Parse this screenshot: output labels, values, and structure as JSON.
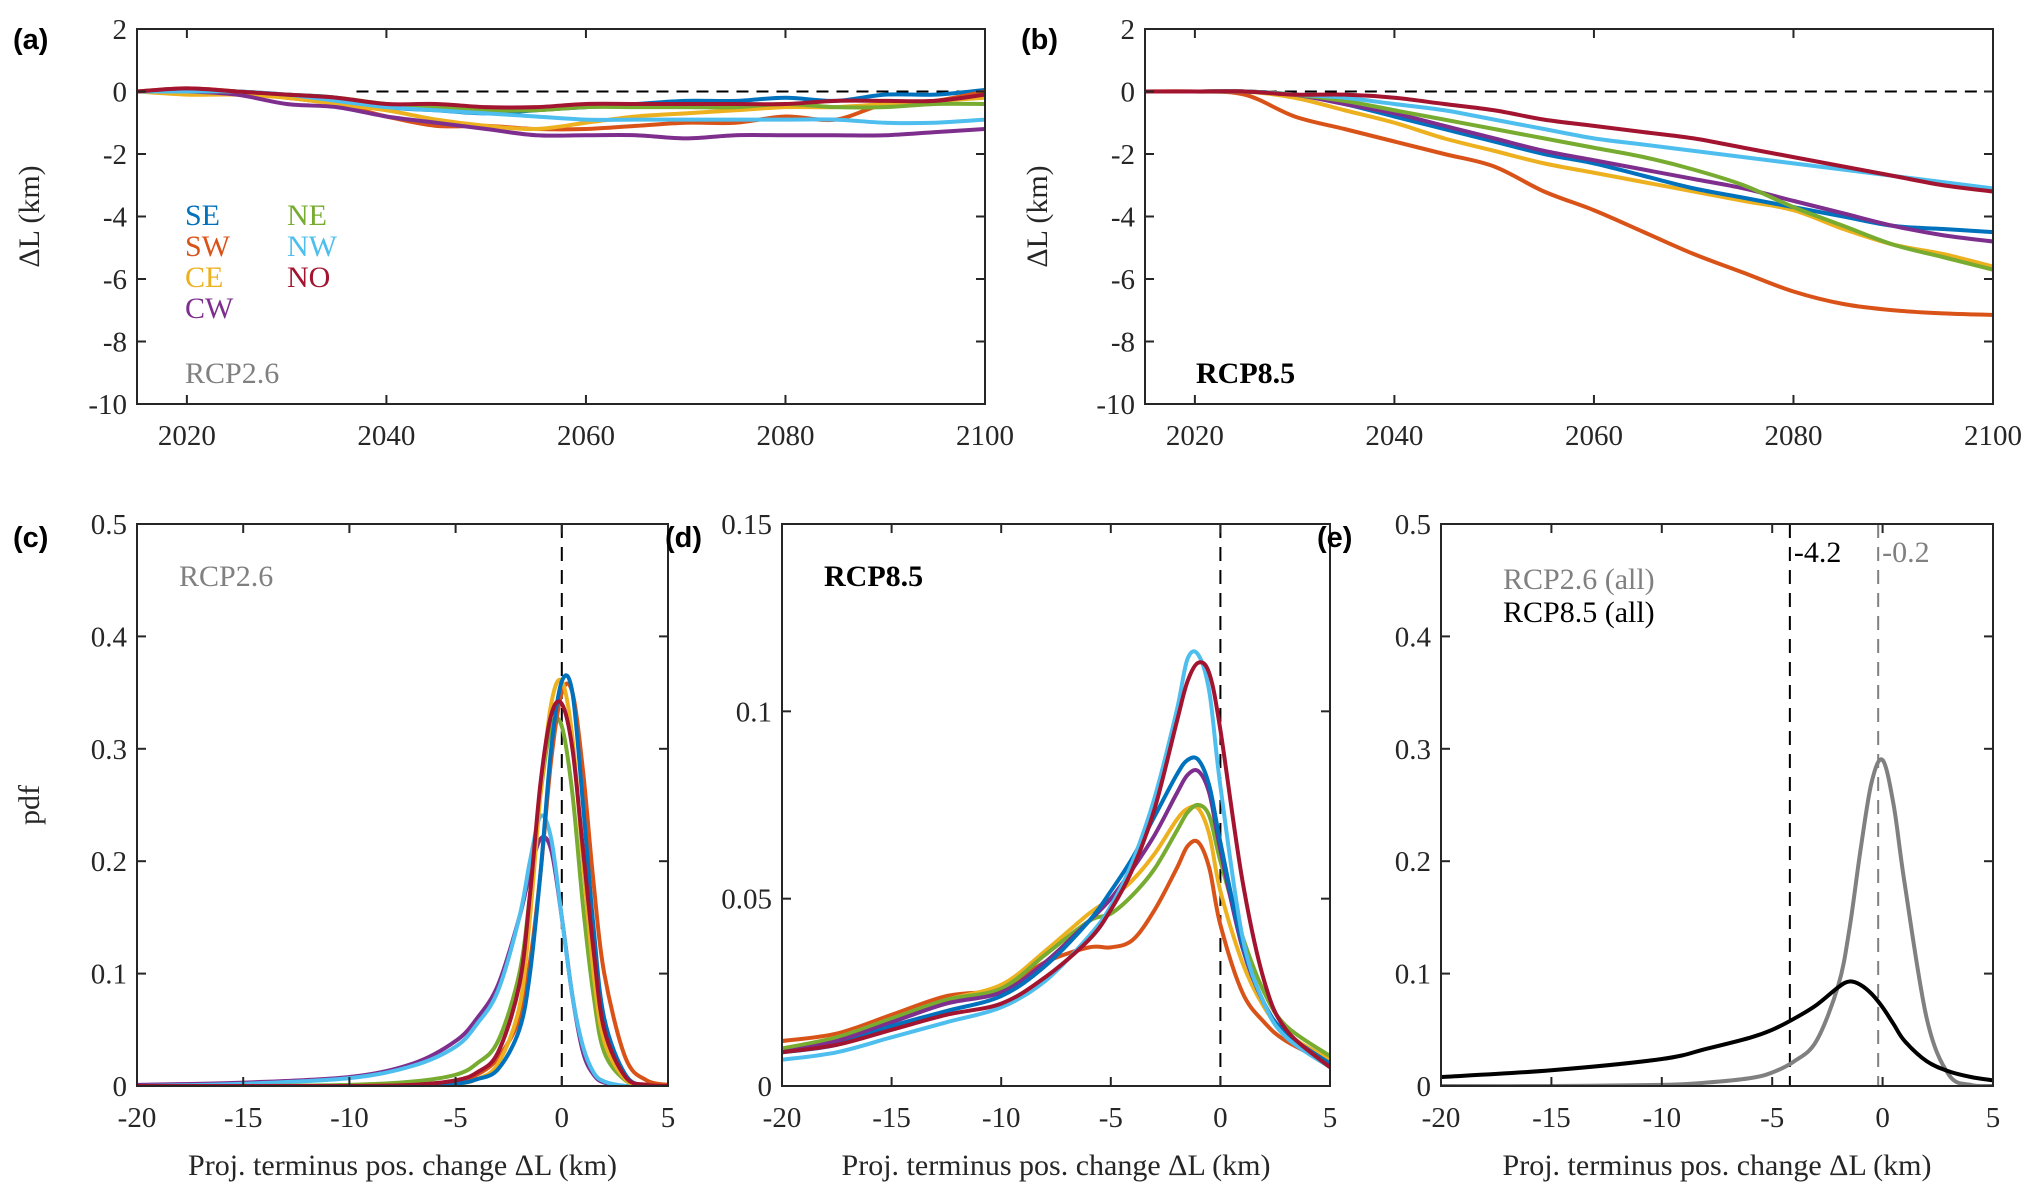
{
  "colors": {
    "SE": "#0072BD",
    "SW": "#D95319",
    "CE": "#EDB120",
    "CW": "#7E2F8E",
    "NE": "#77AC30",
    "NW": "#4DBEEE",
    "NO": "#A2142F",
    "rcp26": "#808080",
    "rcp85": "#000000"
  },
  "chart_data": [
    {
      "id": "a",
      "panel_label": "(a)",
      "type": "line",
      "xlim": [
        2015,
        2100
      ],
      "ylim": [
        -10,
        2
      ],
      "xticks": [
        2020,
        2040,
        2060,
        2080,
        2100
      ],
      "yticks": [
        -10,
        -8,
        -6,
        -4,
        -2,
        0,
        2
      ],
      "ylabel": "ΔL (km)",
      "xlabel": "",
      "annotation": {
        "text": "RCP2.6",
        "color": "#808080",
        "bold": false
      },
      "hline": 0,
      "legend": [
        "SE",
        "NE",
        "SW",
        "NW",
        "CE",
        "NO",
        "CW"
      ],
      "x": [
        2015,
        2020,
        2025,
        2030,
        2035,
        2040,
        2045,
        2050,
        2055,
        2060,
        2065,
        2070,
        2075,
        2080,
        2085,
        2090,
        2095,
        2100
      ],
      "series": [
        {
          "name": "SE",
          "values": [
            0,
            0,
            0,
            -0.1,
            -0.2,
            -0.5,
            -0.6,
            -0.7,
            -0.6,
            -0.5,
            -0.4,
            -0.3,
            -0.3,
            -0.2,
            -0.3,
            -0.1,
            -0.1,
            0.05
          ]
        },
        {
          "name": "SW",
          "values": [
            0,
            0.1,
            0,
            -0.2,
            -0.4,
            -0.8,
            -1.1,
            -1.1,
            -1.2,
            -1.2,
            -1.1,
            -1.0,
            -1.0,
            -0.8,
            -0.9,
            -0.4,
            -0.3,
            0
          ]
        },
        {
          "name": "CE",
          "values": [
            0,
            -0.1,
            -0.1,
            -0.2,
            -0.4,
            -0.6,
            -0.9,
            -1.1,
            -1.2,
            -1.0,
            -0.8,
            -0.7,
            -0.6,
            -0.5,
            -0.5,
            -0.4,
            -0.3,
            -0.2
          ]
        },
        {
          "name": "CW",
          "values": [
            0,
            0,
            -0.1,
            -0.4,
            -0.5,
            -0.8,
            -1.0,
            -1.2,
            -1.4,
            -1.4,
            -1.4,
            -1.5,
            -1.4,
            -1.4,
            -1.4,
            -1.4,
            -1.3,
            -1.2
          ]
        },
        {
          "name": "NE",
          "values": [
            0,
            0,
            0,
            -0.1,
            -0.2,
            -0.4,
            -0.5,
            -0.6,
            -0.6,
            -0.5,
            -0.5,
            -0.5,
            -0.5,
            -0.4,
            -0.5,
            -0.5,
            -0.4,
            -0.4
          ]
        },
        {
          "name": "NW",
          "values": [
            0,
            0,
            0,
            -0.1,
            -0.3,
            -0.5,
            -0.6,
            -0.7,
            -0.8,
            -0.9,
            -0.9,
            -0.9,
            -0.9,
            -0.9,
            -0.9,
            -1.0,
            -1.0,
            -0.9
          ]
        },
        {
          "name": "NO",
          "values": [
            0,
            0.1,
            0,
            -0.1,
            -0.2,
            -0.4,
            -0.4,
            -0.5,
            -0.5,
            -0.4,
            -0.4,
            -0.4,
            -0.4,
            -0.4,
            -0.3,
            -0.3,
            -0.3,
            -0.1
          ]
        }
      ]
    },
    {
      "id": "b",
      "panel_label": "(b)",
      "type": "line",
      "xlim": [
        2015,
        2100
      ],
      "ylim": [
        -10,
        2
      ],
      "xticks": [
        2020,
        2040,
        2060,
        2080,
        2100
      ],
      "yticks": [
        -10,
        -8,
        -6,
        -4,
        -2,
        0,
        2
      ],
      "ylabel": "ΔL (km)",
      "xlabel": "",
      "annotation": {
        "text": "RCP8.5",
        "color": "#000000",
        "bold": true
      },
      "hline": 0,
      "x": [
        2015,
        2020,
        2025,
        2030,
        2035,
        2040,
        2045,
        2050,
        2055,
        2060,
        2065,
        2070,
        2075,
        2080,
        2085,
        2090,
        2095,
        2100
      ],
      "series": [
        {
          "name": "SW",
          "values": [
            0,
            0,
            -0.1,
            -0.8,
            -1.2,
            -1.6,
            -2.0,
            -2.4,
            -3.2,
            -3.8,
            -4.5,
            -5.2,
            -5.8,
            -6.4,
            -6.8,
            -7.0,
            -7.1,
            -7.15
          ]
        },
        {
          "name": "CE",
          "values": [
            0,
            0,
            0,
            -0.2,
            -0.6,
            -1.0,
            -1.5,
            -1.9,
            -2.3,
            -2.6,
            -2.9,
            -3.2,
            -3.5,
            -3.8,
            -4.4,
            -4.9,
            -5.2,
            -5.6
          ]
        },
        {
          "name": "SE",
          "values": [
            0,
            0,
            0,
            -0.1,
            -0.4,
            -0.8,
            -1.2,
            -1.6,
            -2.0,
            -2.3,
            -2.7,
            -3.1,
            -3.4,
            -3.7,
            -4.0,
            -4.3,
            -4.4,
            -4.5
          ]
        },
        {
          "name": "CW",
          "values": [
            0,
            0,
            0,
            -0.1,
            -0.4,
            -0.7,
            -1.1,
            -1.5,
            -1.9,
            -2.2,
            -2.5,
            -2.8,
            -3.1,
            -3.5,
            -3.9,
            -4.3,
            -4.6,
            -4.8
          ]
        },
        {
          "name": "NE",
          "values": [
            0,
            0,
            0,
            -0.1,
            -0.3,
            -0.6,
            -0.9,
            -1.2,
            -1.5,
            -1.8,
            -2.1,
            -2.5,
            -3.0,
            -3.7,
            -4.3,
            -4.9,
            -5.3,
            -5.7
          ]
        },
        {
          "name": "NW",
          "values": [
            0,
            0,
            0,
            -0.1,
            -0.2,
            -0.4,
            -0.6,
            -0.9,
            -1.2,
            -1.5,
            -1.7,
            -1.9,
            -2.1,
            -2.3,
            -2.5,
            -2.7,
            -2.9,
            -3.1
          ]
        },
        {
          "name": "NO",
          "values": [
            0,
            0,
            0,
            -0.1,
            -0.1,
            -0.2,
            -0.4,
            -0.6,
            -0.9,
            -1.1,
            -1.3,
            -1.5,
            -1.8,
            -2.1,
            -2.4,
            -2.7,
            -3.0,
            -3.2
          ]
        }
      ]
    },
    {
      "id": "c",
      "panel_label": "(c)",
      "type": "line",
      "xlim": [
        -20,
        5
      ],
      "ylim": [
        0,
        0.5
      ],
      "xticks": [
        -20,
        -15,
        -10,
        -5,
        0,
        5
      ],
      "yticks": [
        0,
        0.1,
        0.2,
        0.3,
        0.4,
        0.5
      ],
      "ylabel": "pdf",
      "xlabel": "Proj. terminus pos. change ΔL (km)",
      "annotation": {
        "text": "RCP2.6",
        "color": "#808080",
        "bold": false
      },
      "vlines": [
        {
          "x": 0,
          "color": "#000000"
        }
      ],
      "x": [
        -20,
        -15,
        -10,
        -7,
        -5,
        -4,
        -3,
        -2,
        -1.5,
        -1,
        -0.5,
        0,
        0.5,
        1,
        1.5,
        2,
        3,
        4,
        5
      ],
      "series": [
        {
          "name": "CW",
          "values": [
            0.001,
            0.003,
            0.008,
            0.02,
            0.04,
            0.06,
            0.09,
            0.15,
            0.19,
            0.22,
            0.21,
            0.15,
            0.08,
            0.03,
            0.01,
            0.003,
            0,
            0,
            0
          ]
        },
        {
          "name": "NW",
          "values": [
            0,
            0.002,
            0.007,
            0.018,
            0.035,
            0.055,
            0.085,
            0.15,
            0.2,
            0.24,
            0.22,
            0.15,
            0.08,
            0.035,
            0.012,
            0.004,
            0,
            0,
            0
          ]
        },
        {
          "name": "NE",
          "values": [
            0,
            0,
            0.001,
            0.004,
            0.01,
            0.02,
            0.04,
            0.1,
            0.17,
            0.26,
            0.32,
            0.32,
            0.26,
            0.16,
            0.08,
            0.03,
            0.005,
            0.001,
            0
          ]
        },
        {
          "name": "SW",
          "values": [
            0,
            0,
            0,
            0.001,
            0.004,
            0.01,
            0.025,
            0.06,
            0.11,
            0.19,
            0.29,
            0.35,
            0.35,
            0.28,
            0.18,
            0.1,
            0.025,
            0.005,
            0.001
          ]
        },
        {
          "name": "CE",
          "values": [
            0,
            0,
            0,
            0,
            0.002,
            0.006,
            0.02,
            0.07,
            0.15,
            0.26,
            0.34,
            0.36,
            0.31,
            0.2,
            0.1,
            0.04,
            0.006,
            0,
            0
          ]
        },
        {
          "name": "SE",
          "values": [
            0,
            0,
            0,
            0,
            0.002,
            0.006,
            0.015,
            0.05,
            0.1,
            0.19,
            0.3,
            0.36,
            0.35,
            0.25,
            0.14,
            0.06,
            0.01,
            0,
            0
          ]
        },
        {
          "name": "NO",
          "values": [
            0,
            0,
            0,
            0.001,
            0.005,
            0.012,
            0.03,
            0.09,
            0.17,
            0.27,
            0.33,
            0.34,
            0.3,
            0.21,
            0.12,
            0.05,
            0.008,
            0.001,
            0
          ]
        }
      ]
    },
    {
      "id": "d",
      "panel_label": "(d)",
      "type": "line",
      "xlim": [
        -20,
        5
      ],
      "ylim": [
        0,
        0.15
      ],
      "xticks": [
        -20,
        -15,
        -10,
        -5,
        0,
        5
      ],
      "yticks": [
        0,
        0.05,
        0.1,
        0.15
      ],
      "ylabel": "",
      "xlabel": "Proj. terminus pos. change ΔL (km)",
      "annotation": {
        "text": "RCP8.5",
        "color": "#000000",
        "bold": true
      },
      "vlines": [
        {
          "x": 0,
          "color": "#000000"
        }
      ],
      "x": [
        -20,
        -17.5,
        -15,
        -12.5,
        -10,
        -8,
        -6,
        -5,
        -4,
        -3,
        -2,
        -1.5,
        -1,
        -0.5,
        0,
        1,
        2,
        3,
        5
      ],
      "series": [
        {
          "name": "SW",
          "values": [
            0.012,
            0.014,
            0.019,
            0.024,
            0.026,
            0.033,
            0.037,
            0.037,
            0.039,
            0.047,
            0.058,
            0.064,
            0.065,
            0.058,
            0.043,
            0.025,
            0.017,
            0.012,
            0.006
          ]
        },
        {
          "name": "CE",
          "values": [
            0.01,
            0.013,
            0.018,
            0.023,
            0.027,
            0.036,
            0.046,
            0.05,
            0.055,
            0.062,
            0.071,
            0.074,
            0.074,
            0.067,
            0.052,
            0.033,
            0.021,
            0.014,
            0.007
          ]
        },
        {
          "name": "NE",
          "values": [
            0.01,
            0.013,
            0.018,
            0.023,
            0.026,
            0.035,
            0.044,
            0.046,
            0.051,
            0.058,
            0.068,
            0.073,
            0.075,
            0.072,
            0.06,
            0.04,
            0.025,
            0.016,
            0.008
          ]
        },
        {
          "name": "CW",
          "values": [
            0.009,
            0.012,
            0.017,
            0.022,
            0.025,
            0.033,
            0.044,
            0.05,
            0.058,
            0.067,
            0.078,
            0.083,
            0.084,
            0.078,
            0.063,
            0.037,
            0.022,
            0.014,
            0.006
          ]
        },
        {
          "name": "SE",
          "values": [
            0.009,
            0.011,
            0.016,
            0.02,
            0.024,
            0.032,
            0.044,
            0.052,
            0.061,
            0.072,
            0.083,
            0.087,
            0.087,
            0.08,
            0.065,
            0.038,
            0.022,
            0.014,
            0.006
          ]
        },
        {
          "name": "NW",
          "values": [
            0.007,
            0.009,
            0.013,
            0.017,
            0.021,
            0.028,
            0.04,
            0.048,
            0.06,
            0.077,
            0.1,
            0.114,
            0.115,
            0.105,
            0.08,
            0.04,
            0.022,
            0.013,
            0.005
          ]
        },
        {
          "name": "NO",
          "values": [
            0.009,
            0.011,
            0.015,
            0.019,
            0.022,
            0.029,
            0.039,
            0.047,
            0.058,
            0.074,
            0.097,
            0.108,
            0.113,
            0.11,
            0.095,
            0.055,
            0.028,
            0.015,
            0.005
          ]
        }
      ]
    },
    {
      "id": "e",
      "panel_label": "(e)",
      "type": "line",
      "xlim": [
        -20,
        5
      ],
      "ylim": [
        0,
        0.5
      ],
      "xticks": [
        -20,
        -15,
        -10,
        -5,
        0,
        5
      ],
      "yticks": [
        0,
        0.1,
        0.2,
        0.3,
        0.4,
        0.5
      ],
      "ylabel": "",
      "xlabel": "Proj. terminus pos. change ΔL (km)",
      "legend_text": [
        {
          "text": "RCP2.6 (all)",
          "color": "#808080"
        },
        {
          "text": "RCP8.5 (all)",
          "color": "#000000"
        }
      ],
      "vlines": [
        {
          "x": -4.2,
          "color": "#000000",
          "label": "-4.2"
        },
        {
          "x": -0.2,
          "color": "#808080",
          "label": "-0.2"
        }
      ],
      "x": [
        -20,
        -15,
        -10,
        -8,
        -6,
        -5,
        -4,
        -3,
        -2,
        -1.5,
        -1,
        -0.5,
        0,
        0.5,
        1,
        2,
        3,
        4,
        5
      ],
      "series": [
        {
          "name": "RCP2.6 (all)",
          "values": [
            0,
            0,
            0.001,
            0.003,
            0.007,
            0.012,
            0.022,
            0.04,
            0.09,
            0.14,
            0.21,
            0.27,
            0.29,
            0.25,
            0.18,
            0.06,
            0.01,
            0.001,
            0
          ]
        },
        {
          "name": "RCP8.5 (all)",
          "values": [
            0.008,
            0.014,
            0.024,
            0.033,
            0.043,
            0.05,
            0.06,
            0.072,
            0.088,
            0.093,
            0.09,
            0.082,
            0.07,
            0.055,
            0.04,
            0.022,
            0.013,
            0.008,
            0.005
          ]
        }
      ]
    }
  ]
}
